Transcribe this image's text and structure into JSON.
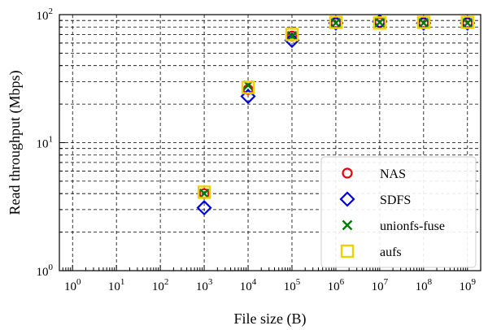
{
  "chart_data": {
    "type": "scatter",
    "xlabel": "File size (B)",
    "ylabel": "Read throughput (Mbps)",
    "xscale": "log",
    "yscale": "log",
    "xlim": [
      0.5,
      2000000000
    ],
    "ylim": [
      1,
      100
    ],
    "grid": true,
    "grid_style": "dashed, major and minor",
    "legend_placement": "lower-right",
    "x_ticks": [
      1,
      10,
      100,
      1000,
      10000,
      100000,
      1000000,
      10000000,
      100000000,
      1000000000
    ],
    "x_tick_labels": [
      {
        "base": "10",
        "exp": "0"
      },
      {
        "base": "10",
        "exp": "1"
      },
      {
        "base": "10",
        "exp": "2"
      },
      {
        "base": "10",
        "exp": "3"
      },
      {
        "base": "10",
        "exp": "4"
      },
      {
        "base": "10",
        "exp": "5"
      },
      {
        "base": "10",
        "exp": "6"
      },
      {
        "base": "10",
        "exp": "7"
      },
      {
        "base": "10",
        "exp": "8"
      },
      {
        "base": "10",
        "exp": "9"
      }
    ],
    "y_ticks": [
      1,
      10,
      100
    ],
    "y_tick_labels": [
      {
        "base": "10",
        "exp": "0"
      },
      {
        "base": "10",
        "exp": "1"
      },
      {
        "base": "10",
        "exp": "2"
      }
    ],
    "x": [
      1000,
      10000,
      100000,
      1000000,
      10000000,
      100000000,
      1000000000
    ],
    "series": [
      {
        "name": "NAS",
        "marker": "circle",
        "color": "#e8000b",
        "values": [
          4.0,
          26,
          68,
          86,
          87,
          86,
          86
        ]
      },
      {
        "name": "SDFS",
        "marker": "diamond",
        "color": "#0000dd",
        "values": [
          3.1,
          23,
          63,
          86,
          88,
          86,
          86
        ]
      },
      {
        "name": "unionfs-fuse",
        "marker": "x",
        "color": "#007a00",
        "values": [
          4.0,
          28,
          68,
          86,
          87,
          86,
          86
        ]
      },
      {
        "name": "aufs",
        "marker": "square",
        "color": "#f0d000",
        "values": [
          4.1,
          27,
          70,
          87,
          86,
          87,
          87
        ]
      }
    ]
  }
}
